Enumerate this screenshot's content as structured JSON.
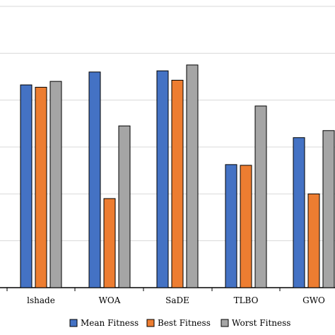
{
  "chart_data": {
    "type": "bar",
    "categories": [
      "lshade",
      "WOA",
      "SaDE",
      "TLBO",
      "GWO"
    ],
    "series": [
      {
        "name": "Mean Fitness",
        "color": "#4472C4",
        "values": [
          8.65,
          9.2,
          9.25,
          5.25,
          6.4
        ]
      },
      {
        "name": "Best Fitness",
        "color": "#ED7D31",
        "values": [
          8.55,
          3.8,
          8.85,
          5.22,
          4.0
        ]
      },
      {
        "name": "Worst Fitness",
        "color": "#A5A5A5",
        "values": [
          8.8,
          6.9,
          9.5,
          7.75,
          6.7
        ]
      }
    ],
    "ylim": [
      0,
      12
    ],
    "grid": true,
    "legend_position": "bottom"
  }
}
